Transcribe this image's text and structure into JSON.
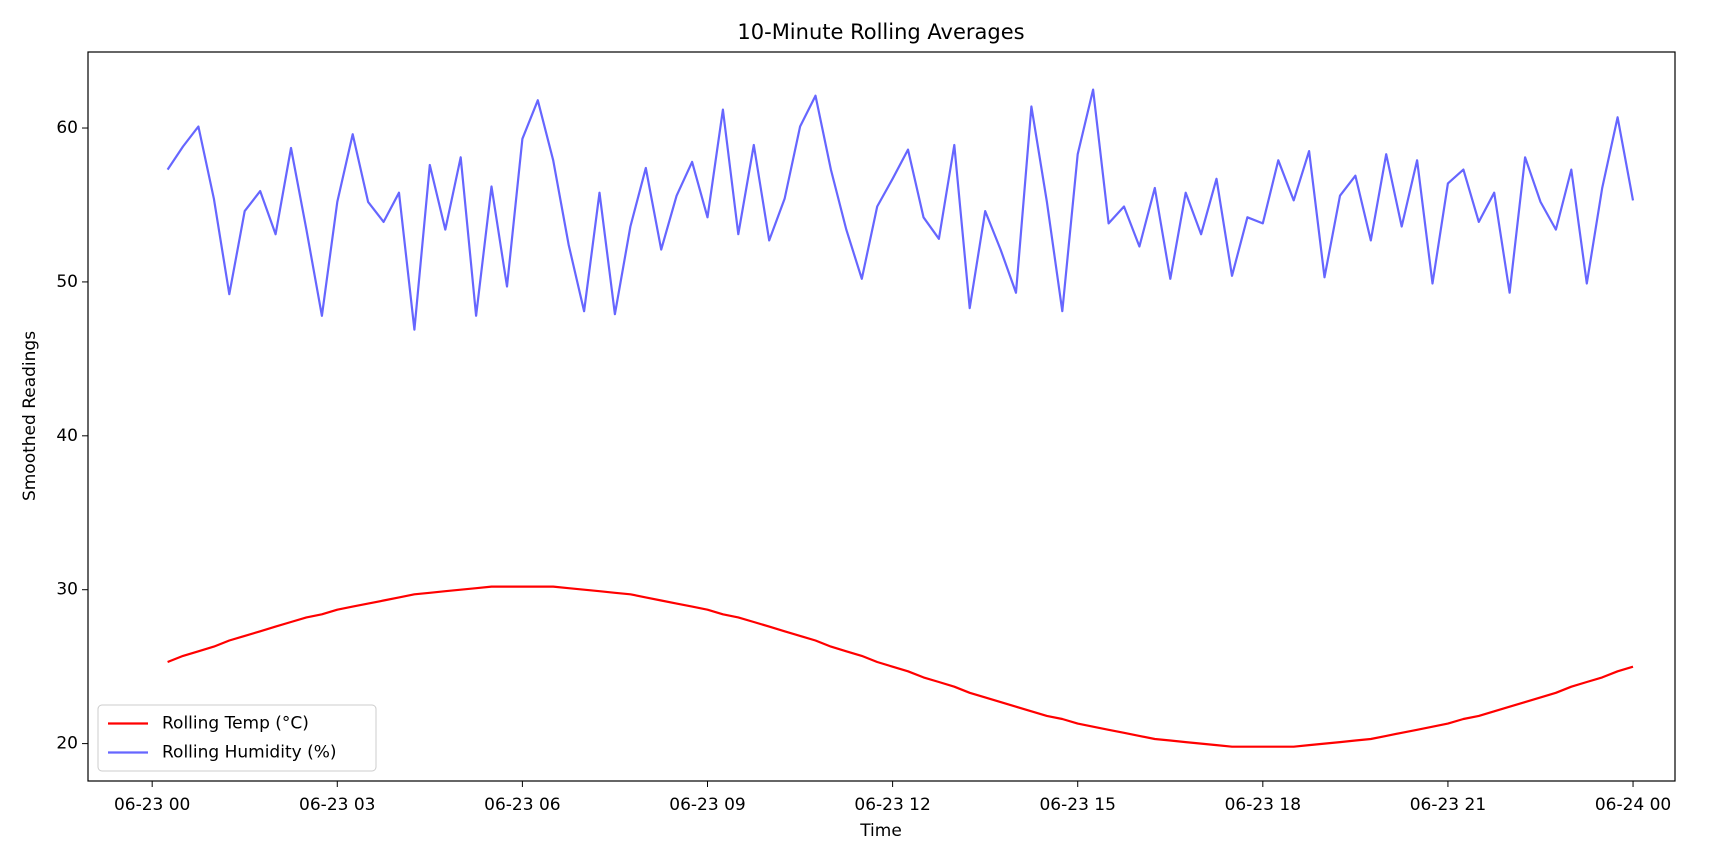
{
  "chart_data": {
    "type": "line",
    "title": "10-Minute Rolling Averages",
    "x_label": "Time",
    "y_label": "Smoothed Readings",
    "x": [
      0.25,
      0.5,
      0.75,
      1,
      1.25,
      1.5,
      1.75,
      2,
      2.25,
      2.5,
      2.75,
      3,
      3.25,
      3.5,
      3.75,
      4,
      4.25,
      4.5,
      4.75,
      5,
      5.25,
      5.5,
      5.75,
      6,
      6.25,
      6.5,
      6.75,
      7,
      7.25,
      7.5,
      7.75,
      8,
      8.25,
      8.5,
      8.75,
      9,
      9.25,
      9.5,
      9.75,
      10,
      10.25,
      10.5,
      10.75,
      11,
      11.25,
      11.5,
      11.75,
      12,
      12.25,
      12.5,
      12.75,
      13,
      13.25,
      13.5,
      13.75,
      14,
      14.25,
      14.5,
      14.75,
      15,
      15.25,
      15.5,
      15.75,
      16,
      16.25,
      16.5,
      16.75,
      17,
      17.25,
      17.5,
      17.75,
      18,
      18.25,
      18.5,
      18.75,
      19,
      19.25,
      19.5,
      19.75,
      20,
      20.25,
      20.5,
      20.75,
      21,
      21.25,
      21.5,
      21.75,
      22,
      22.25,
      22.5,
      22.75,
      23,
      23.25,
      23.5,
      23.75,
      24
    ],
    "series": [
      {
        "name": "Rolling Temp (°C)",
        "color": "#ff0000",
        "values": [
          25.3,
          25.7,
          26.0,
          26.3,
          26.7,
          27.0,
          27.3,
          27.6,
          27.9,
          28.2,
          28.4,
          28.7,
          28.9,
          29.1,
          29.3,
          29.5,
          29.7,
          29.8,
          29.9,
          30.0,
          30.1,
          30.2,
          30.2,
          30.2,
          30.2,
          30.2,
          30.1,
          30.0,
          29.9,
          29.8,
          29.7,
          29.5,
          29.3,
          29.1,
          28.9,
          28.7,
          28.4,
          28.2,
          27.9,
          27.6,
          27.3,
          27.0,
          26.7,
          26.3,
          26.0,
          25.7,
          25.3,
          25.0,
          24.7,
          24.3,
          24.0,
          23.7,
          23.3,
          23.0,
          22.7,
          22.4,
          22.1,
          21.8,
          21.6,
          21.3,
          21.1,
          20.9,
          20.7,
          20.5,
          20.3,
          20.2,
          20.1,
          20.0,
          19.9,
          19.8,
          19.8,
          19.8,
          19.8,
          19.8,
          19.9,
          20.0,
          20.1,
          20.2,
          20.3,
          20.5,
          20.7,
          20.9,
          21.1,
          21.3,
          21.6,
          21.8,
          22.1,
          22.4,
          22.7,
          23.0,
          23.3,
          23.7,
          24.0,
          24.3,
          24.7,
          25.0
        ]
      },
      {
        "name": "Rolling Humidity (%)",
        "color": "#6666ff",
        "values": [
          57.3,
          58.8,
          60.1,
          55.4,
          49.2,
          54.6,
          55.9,
          53.1,
          58.7,
          53.4,
          47.8,
          55.2,
          59.6,
          55.2,
          53.9,
          55.8,
          46.9,
          57.6,
          53.4,
          58.1,
          47.8,
          56.2,
          49.7,
          59.3,
          61.8,
          57.9,
          52.4,
          48.1,
          55.8,
          47.9,
          53.6,
          57.4,
          52.1,
          55.6,
          57.8,
          54.2,
          61.2,
          53.1,
          58.9,
          52.7,
          55.4,
          60.1,
          62.1,
          57.3,
          53.4,
          50.2,
          54.9,
          56.7,
          58.6,
          54.2,
          52.8,
          58.9,
          48.3,
          54.6,
          52.1,
          49.3,
          61.4,
          55.2,
          48.1,
          58.3,
          62.5,
          53.8,
          54.9,
          52.3,
          56.1,
          50.2,
          55.8,
          53.1,
          56.7,
          50.4,
          54.2,
          53.8,
          57.9,
          55.3,
          58.5,
          50.3,
          55.6,
          56.9,
          52.7,
          58.3,
          53.6,
          57.9,
          49.9,
          56.4,
          57.3,
          53.9,
          55.8,
          49.3,
          58.1,
          55.2,
          53.4,
          57.3,
          49.9,
          56.1,
          60.7,
          55.3
        ]
      }
    ],
    "xlim": [
      -1.04,
      24.68
    ],
    "xticks": [
      {
        "value": 0,
        "label": "06-23 00"
      },
      {
        "value": 3,
        "label": "06-23 03"
      },
      {
        "value": 6,
        "label": "06-23 06"
      },
      {
        "value": 9,
        "label": "06-23 09"
      },
      {
        "value": 12,
        "label": "06-23 12"
      },
      {
        "value": 15,
        "label": "06-23 15"
      },
      {
        "value": 18,
        "label": "06-23 18"
      },
      {
        "value": 21,
        "label": "06-23 21"
      },
      {
        "value": 24,
        "label": "06-24 00"
      }
    ],
    "ylim": [
      17.57,
      64.94
    ],
    "yticks": [
      20,
      30,
      40,
      50,
      60
    ],
    "grid": false,
    "legend": "lower left"
  }
}
